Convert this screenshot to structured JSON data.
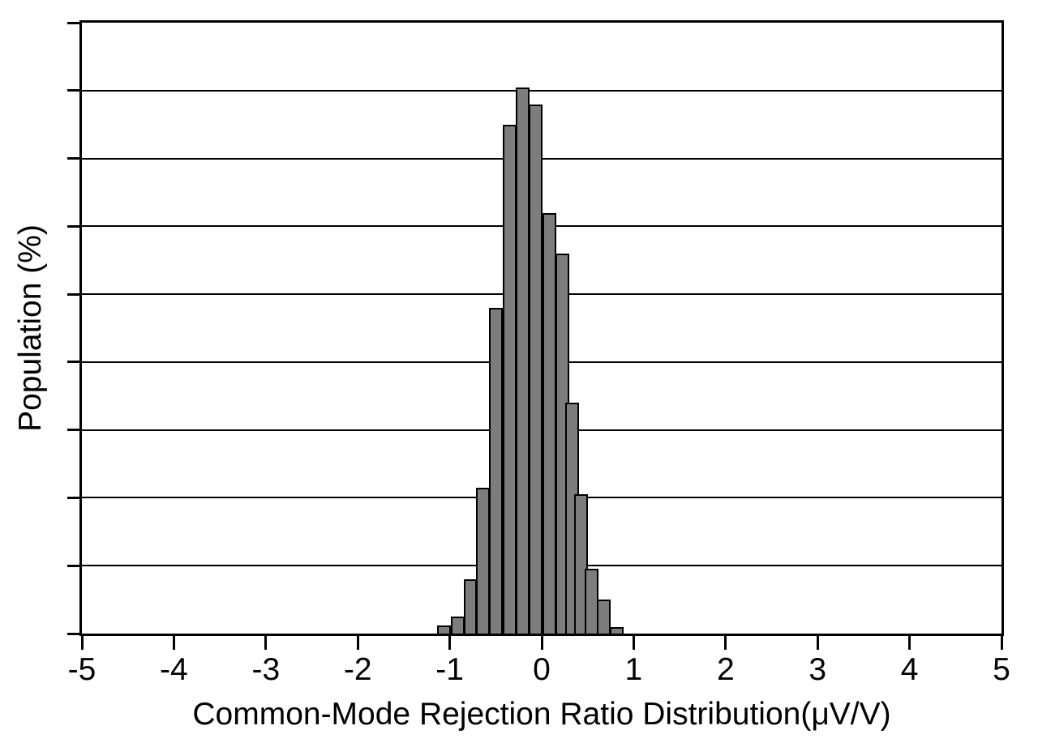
{
  "chart_data": {
    "type": "bar",
    "subtype": "histogram",
    "title": "",
    "xlabel": "Common-Mode Rejection Ratio Distribution(μV/V)",
    "ylabel": "Population (%)",
    "xlim": [
      -5,
      5
    ],
    "ylim": [
      0,
      18
    ],
    "x_ticks": [
      -5,
      -4,
      -3,
      -2,
      -1,
      0,
      1,
      2,
      3,
      4,
      5
    ],
    "x_tick_labels": [
      "-5",
      "-4",
      "-3",
      "-2",
      "-1",
      "0",
      "1",
      "2",
      "3",
      "4",
      "5"
    ],
    "y_tick_labels": [],
    "y_division_step": 2,
    "grid": "horizontal",
    "legend_position": "none",
    "bin_width": 0.14,
    "bin_centers": [
      -1.07,
      -0.92,
      -0.78,
      -0.64,
      -0.5,
      -0.35,
      -0.21,
      -0.07,
      0.08,
      0.22,
      0.33,
      0.42,
      0.54,
      0.67,
      0.81
    ],
    "values_percent": [
      0.25,
      0.5,
      1.6,
      4.3,
      9.6,
      15.0,
      16.1,
      15.6,
      12.4,
      11.2,
      6.8,
      4.1,
      1.9,
      1.0,
      0.2
    ]
  },
  "colors": {
    "bar_fill": "#7d7d7d",
    "bar_border": "#000000",
    "axis": "#000000",
    "background": "#ffffff"
  }
}
